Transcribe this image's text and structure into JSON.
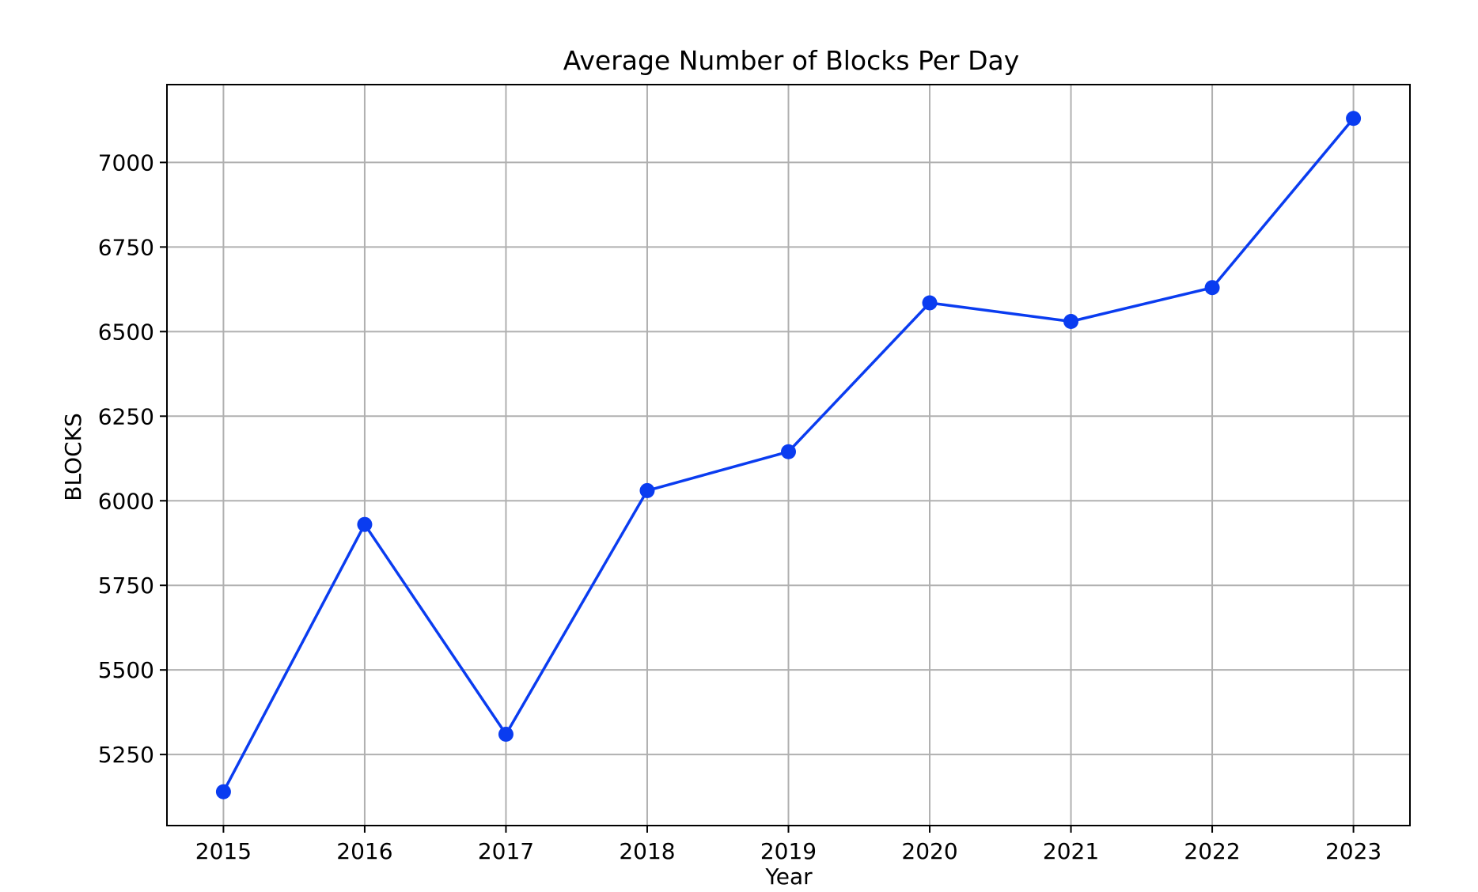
{
  "chart_data": {
    "type": "line",
    "title": "Average Number of Blocks Per Day",
    "xlabel": "Year",
    "ylabel": "BLOCKS",
    "x": [
      "2015",
      "2016",
      "2017",
      "2018",
      "2019",
      "2020",
      "2021",
      "2022",
      "2023"
    ],
    "x_range": [
      2014.6,
      2023.4
    ],
    "ylim": [
      5040,
      7230
    ],
    "yticks": [
      5250,
      5500,
      5750,
      6000,
      6250,
      6500,
      6750,
      7000
    ],
    "grid": true,
    "legend": "none",
    "series": [
      {
        "name": "",
        "color": "#0a3cf0",
        "marker": "circle",
        "values": [
          5140,
          5930,
          5310,
          6030,
          6145,
          6585,
          6530,
          6630,
          7130
        ]
      }
    ]
  }
}
